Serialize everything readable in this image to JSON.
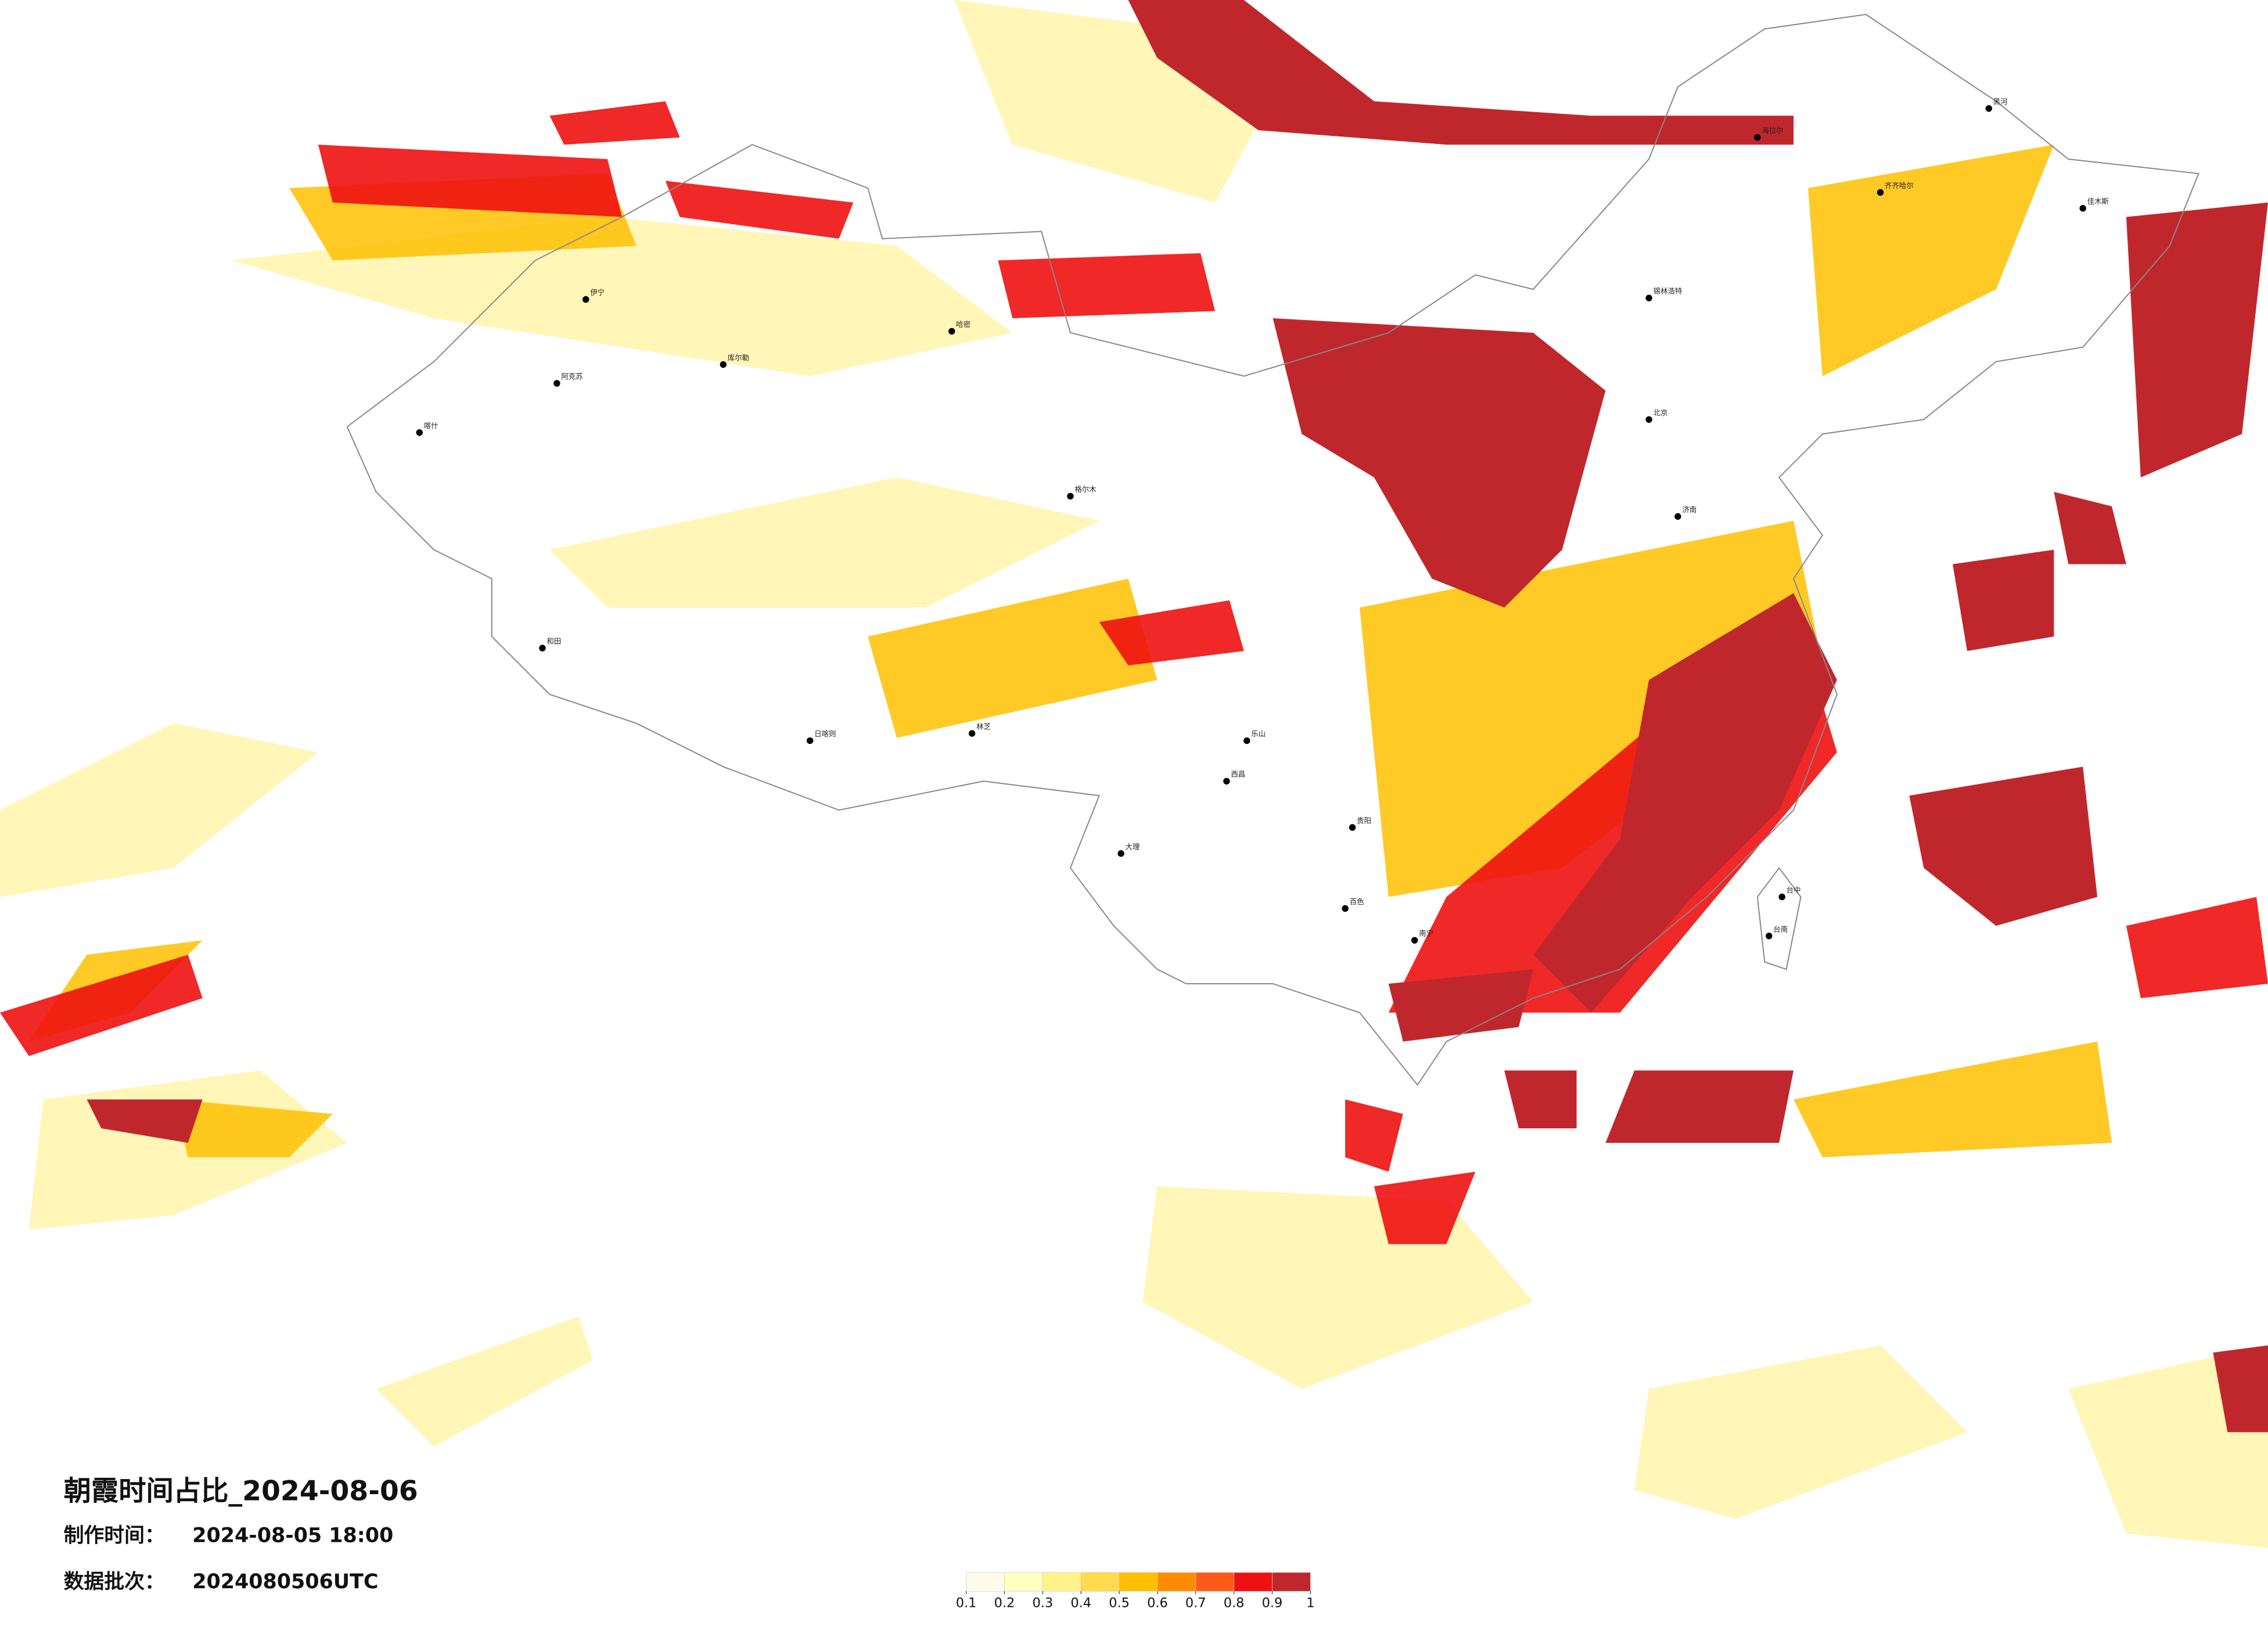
{
  "title": "朝霞时间占比_2024-08-06",
  "production_time": {
    "label": "制作时间：",
    "value": "2024-08-05 18:00"
  },
  "batch": {
    "label": "数据批次：",
    "value": "2024080506UTC"
  },
  "legend": {
    "colors": [
      "#fffbe8",
      "#ffffc2",
      "#fff38a",
      "#ffdb4d",
      "#ffbf00",
      "#ff8c00",
      "#ff5a1a",
      "#ee1111",
      "#c0272d"
    ],
    "ticks": [
      0.1,
      0.2,
      0.3,
      0.4,
      0.5,
      0.6,
      0.7,
      0.8,
      0.9,
      1
    ]
  },
  "cities": [
    "伊宁",
    "阿克苏",
    "喀什",
    "库尔勒",
    "哈密",
    "和田",
    "格尔木",
    "日喀则",
    "林芝",
    "锡林浩特",
    "齐齐哈尔",
    "海拉尔",
    "黑河",
    "佳木斯",
    "北京",
    "济南",
    "大理",
    "西昌",
    "乐山",
    "贵阳",
    "百色",
    "南宁",
    "台中",
    "台南"
  ]
}
